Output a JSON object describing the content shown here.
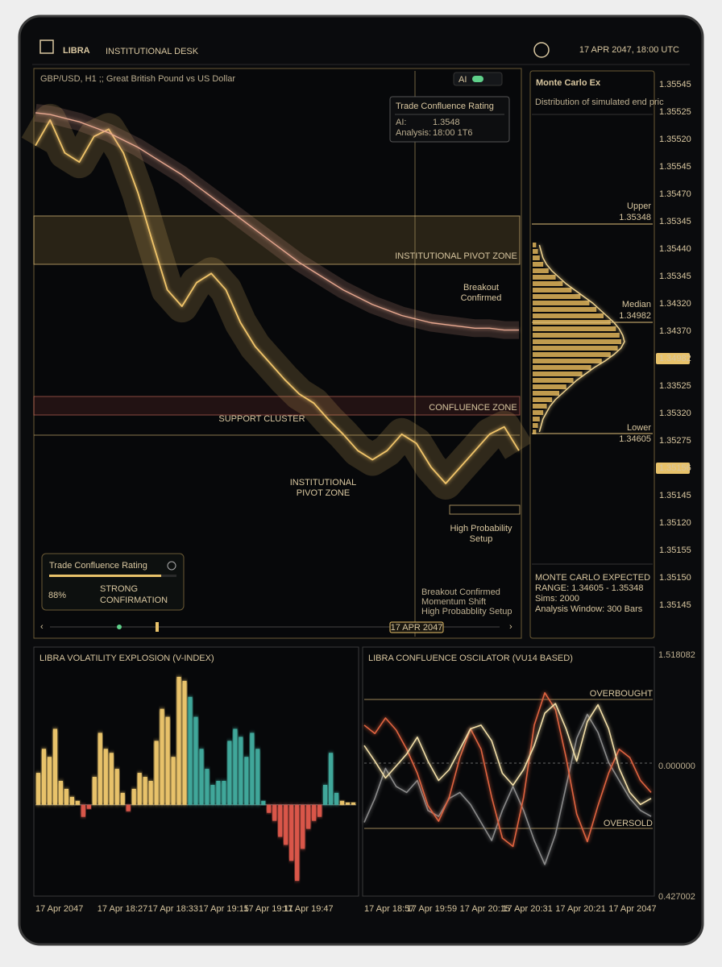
{
  "header": {
    "brand": "LIBRA",
    "title": "INSTITUTIONAL DESK",
    "datetime": "17 APR 2047, 18:00 UTC"
  },
  "main_panel": {
    "symbol": "GBP/USD, H1 ;; Great British Pound vs US Dollar",
    "ai_toggle": "AI",
    "rating_box": {
      "title": "Trade Confluence Rating",
      "rows": [
        [
          "AI:",
          "1.3548"
        ],
        [
          "Analysis:",
          "18:00 1T6"
        ]
      ]
    },
    "annotations": {
      "pivot_zone": "INSTITUTIONAL PIVOT ZONE",
      "breakout": [
        "Breakout",
        "Confirmed"
      ],
      "confluence_zone": "CONFLUENCE ZONE",
      "support_cluster": "SUPPORT CLUSTER",
      "pivot_zone_2": [
        "INSTITUTIONAL",
        "PIVOT ZONE"
      ],
      "high_probability": [
        "High Probability",
        "Setup"
      ]
    },
    "notes": [
      "Breakout Confirmed",
      "Momentum Shift",
      "High Probabblity Setup"
    ],
    "timeline_label": "17 APR 2047"
  },
  "rating_widget": {
    "title": "Trade Confluence Rating",
    "score": {
      "value": 88,
      "label": "88%"
    },
    "verdict": [
      "STRONG",
      "CONFIRMATION"
    ]
  },
  "monte_carlo": {
    "title": "Monte Carlo Ex",
    "subtitle": "Distribution of simulated end pric",
    "levels": [
      {
        "name": "Upper",
        "value": "1.35348"
      },
      {
        "name": "Median",
        "value": "1.34982"
      },
      {
        "name": "Lower",
        "value": "1.34605"
      }
    ],
    "summary": [
      "MONTE CARLO EXPECTED",
      "RANGE: 1.34605 - 1.35348",
      "Sims: 2000",
      "Analysis Window: 300 Bars"
    ]
  },
  "price_axis": [
    {
      "text": "1.35545"
    },
    {
      "text": "1.35525"
    },
    {
      "text": "1.35520"
    },
    {
      "text": "1.35545"
    },
    {
      "text": "1.35470"
    },
    {
      "text": "1.35345"
    },
    {
      "text": "1.35440"
    },
    {
      "text": "1.35345"
    },
    {
      "text": "1.34320"
    },
    {
      "text": "1.34370"
    },
    {
      "text": "1.34982",
      "marker": true
    },
    {
      "text": "1.33525"
    },
    {
      "text": "1.35320"
    },
    {
      "text": "1.35275"
    },
    {
      "text": "1.35156",
      "marker": true
    },
    {
      "text": "1.35145"
    },
    {
      "text": "1.35120"
    },
    {
      "text": "1.35155"
    },
    {
      "text": "1.35150"
    },
    {
      "text": "1.35145"
    }
  ],
  "oscillator_axis": [
    "1.518082",
    "0.000000",
    "0.427002"
  ],
  "chart_data": [
    {
      "type": "line",
      "ylim": [
        1.33,
        1.36
      ],
      "series": [
        {
          "color": "#f0c46a",
          "values": [
            1.356,
            1.3574,
            1.3556,
            1.3551,
            1.3565,
            1.3569,
            1.3556,
            1.3534,
            1.3507,
            1.3481,
            1.3472,
            1.3485,
            1.349,
            1.3481,
            1.3463,
            1.345,
            1.3441,
            1.3432,
            1.3424,
            1.3419,
            1.341,
            1.3402,
            1.3393,
            1.3388,
            1.3393,
            1.3402,
            1.3397,
            1.3384,
            1.3375,
            1.3384,
            1.3393,
            1.3402,
            1.3406,
            1.3393
          ]
        },
        {
          "color": "#e8a890",
          "values": [
            1.3578,
            1.3577,
            1.3575,
            1.3573,
            1.357,
            1.3567,
            1.3563,
            1.3559,
            1.3554,
            1.3549,
            1.3544,
            1.3538,
            1.3532,
            1.3526,
            1.352,
            1.3514,
            1.3508,
            1.3502,
            1.3496,
            1.3491,
            1.3486,
            1.3481,
            1.3477,
            1.3473,
            1.347,
            1.3467,
            1.3465,
            1.3463,
            1.3462,
            1.3461,
            1.346,
            1.346,
            1.3459,
            1.3459
          ]
        }
      ]
    },
    {
      "type": "bar",
      "orientation": "horizontal",
      "color": "#e0b55a",
      "xlim": [
        0,
        100
      ],
      "values": [
        4,
        6,
        8,
        12,
        18,
        26,
        34,
        44,
        54,
        64,
        72,
        80,
        88,
        94,
        98,
        100,
        96,
        88,
        78,
        66,
        56,
        46,
        38,
        30,
        22,
        16,
        12,
        8,
        6,
        4
      ]
    },
    {
      "type": "bar",
      "title": "LIBRA VOLATILITY EXPLOSION (V-INDEX)",
      "ylim": [
        -110,
        170
      ],
      "xlim": [
        0,
        57
      ],
      "xticks": [
        {
          "value": 0,
          "label": "17 Apr 2047"
        },
        {
          "value": 11,
          "label": "17 Apr 18:27"
        },
        {
          "value": 20,
          "label": "17 Apr 18:33"
        },
        {
          "value": 29,
          "label": "17 Apr 19:15"
        },
        {
          "value": 37,
          "label": "17 Apr 19:11"
        },
        {
          "value": 44,
          "label": "17 Apr 19:47"
        }
      ],
      "values": [
        40,
        70,
        60,
        95,
        30,
        20,
        10,
        5,
        -15,
        -5,
        35,
        90,
        70,
        65,
        45,
        15,
        -8,
        20,
        40,
        35,
        30,
        80,
        120,
        110,
        60,
        160,
        155,
        135,
        110,
        70,
        45,
        25,
        30,
        30,
        80,
        95,
        85,
        60,
        90,
        70,
        5,
        -10,
        -20,
        -40,
        -50,
        -70,
        -95,
        -55,
        -30,
        -20,
        -15,
        25,
        65,
        15,
        5,
        3,
        3
      ],
      "colors": [
        "#e8c26a",
        "#e8c26a",
        "#e8c26a",
        "#e8c26a",
        "#e8c26a",
        "#e8c26a",
        "#e8c26a",
        "#e8c26a",
        "#d9574a",
        "#d9574a",
        "#e8c26a",
        "#e8c26a",
        "#e8c26a",
        "#e8c26a",
        "#e8c26a",
        "#e8c26a",
        "#d9574a",
        "#e8c26a",
        "#e8c26a",
        "#e8c26a",
        "#e8c26a",
        "#e8c26a",
        "#e8c26a",
        "#e8c26a",
        "#e8c26a",
        "#e8c26a",
        "#e8c26a",
        "#3fa79a",
        "#3fa79a",
        "#3fa79a",
        "#3fa79a",
        "#3fa79a",
        "#3fa79a",
        "#3fa79a",
        "#3fa79a",
        "#3fa79a",
        "#3fa79a",
        "#3fa79a",
        "#3fa79a",
        "#3fa79a",
        "#3fa79a",
        "#d9574a",
        "#d9574a",
        "#d9574a",
        "#d9574a",
        "#d9574a",
        "#d9574a",
        "#d9574a",
        "#d9574a",
        "#d9574a",
        "#d9574a",
        "#3fa79a",
        "#3fa79a",
        "#3fa79a",
        "#e8c26a",
        "#e8c26a",
        "#e8c26a"
      ]
    },
    {
      "type": "line",
      "title": "LIBRA CONFLUENCE OSCILATOR (VU14 BASED)",
      "ylim": [
        -100,
        100
      ],
      "xlim": [
        0,
        27
      ],
      "annotations": [
        "OVERBOUGHT",
        "OVERSOLD"
      ],
      "xticks": [
        {
          "value": 0,
          "label": "17 Apr 18:57"
        },
        {
          "value": 4,
          "label": "17 Apr 19:59"
        },
        {
          "value": 9,
          "label": "17 Apr 20:15"
        },
        {
          "value": 13,
          "label": "17 Apr 20:31"
        },
        {
          "value": 18,
          "label": "17 Apr 20:21"
        },
        {
          "value": 23,
          "label": "17 Apr 2047"
        }
      ],
      "series": [
        {
          "color": "#f3dfa8",
          "values": [
            24,
            11,
            -3,
            7,
            17,
            31,
            11,
            -5,
            4,
            21,
            38,
            41,
            28,
            1,
            -9,
            4,
            24,
            51,
            59,
            38,
            11,
            44,
            58,
            38,
            5,
            -15,
            -25,
            -20
          ]
        },
        {
          "color": "#e0643f",
          "values": [
            41,
            34,
            47,
            37,
            21,
            1,
            -26,
            -39,
            -19,
            14,
            38,
            21,
            -19,
            -53,
            -60,
            -19,
            41,
            68,
            54,
            14,
            -33,
            -56,
            -26,
            1,
            21,
            14,
            -5,
            -15
          ]
        },
        {
          "color": "#8a8a8a",
          "values": [
            -40,
            -20,
            5,
            -10,
            -15,
            -5,
            -30,
            -35,
            -20,
            -15,
            -25,
            -40,
            -55,
            -30,
            -10,
            -30,
            -55,
            -75,
            -50,
            -10,
            30,
            50,
            35,
            10,
            -5,
            -20,
            -30,
            -35
          ]
        }
      ]
    }
  ]
}
